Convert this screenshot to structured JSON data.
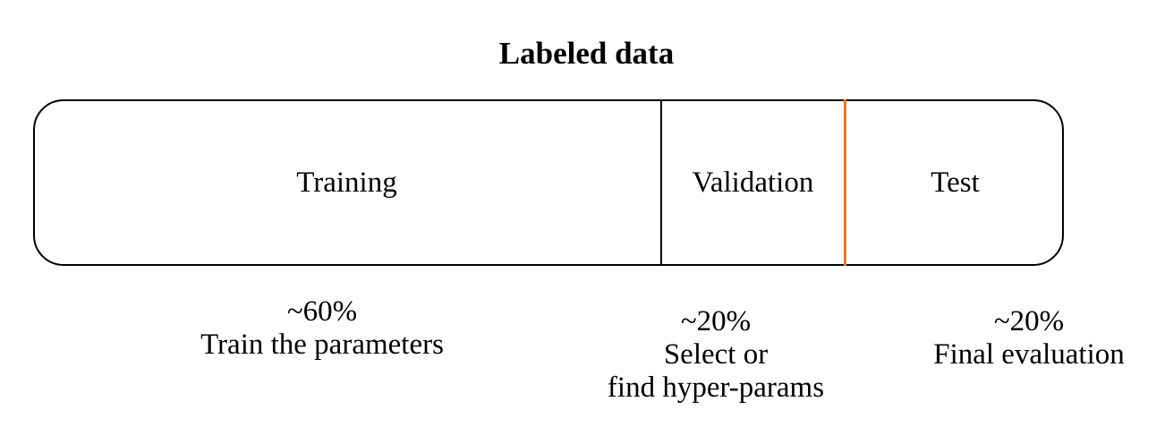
{
  "title": "Labeled data",
  "segments": [
    {
      "label": "Training",
      "percent": "~60%",
      "description_lines": [
        "Train the parameters"
      ]
    },
    {
      "label": "Validation",
      "percent": "~20%",
      "description_lines": [
        "Select or",
        "find hyper-params"
      ]
    },
    {
      "label": "Test",
      "percent": "~20%",
      "description_lines": [
        "Final evaluation"
      ]
    }
  ],
  "colors": {
    "border": "#000000",
    "test_divider": "#E87722",
    "background": "#ffffff"
  }
}
